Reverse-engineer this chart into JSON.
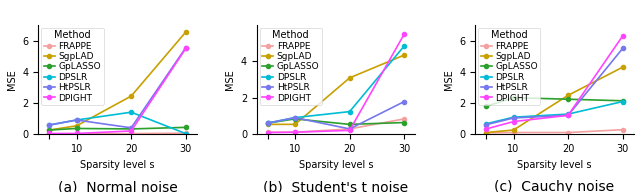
{
  "x": [
    5,
    10,
    20,
    30
  ],
  "methods": [
    "FRAPPE",
    "SgpLAD",
    "GpLASSO",
    "DPSLR",
    "HtPSLR",
    "DPIGHT"
  ],
  "colors": [
    "#f4a0a0",
    "#c8a000",
    "#2ca02c",
    "#00bcd4",
    "#7777ee",
    "#ff44ff"
  ],
  "markers": [
    "o",
    "o",
    "o",
    "o",
    "o",
    "o"
  ],
  "panels": [
    {
      "caption": "(a)  Normal noise",
      "ylabel": "MSE",
      "xlabel": "Sparsity level s",
      "data": [
        [
          0.03,
          0.03,
          0.05,
          0.08
        ],
        [
          0.28,
          0.55,
          2.45,
          6.55
        ],
        [
          0.28,
          0.38,
          0.35,
          0.45
        ],
        [
          0.6,
          0.92,
          1.42,
          0.05
        ],
        [
          0.6,
          0.92,
          0.42,
          5.55
        ],
        [
          0.06,
          0.06,
          0.22,
          5.5
        ]
      ],
      "ylim": [
        0,
        7.0
      ],
      "yticks": [
        0,
        2,
        4,
        6
      ]
    },
    {
      "caption": "(b)  Student's t noise",
      "ylabel": "MSE",
      "xlabel": "Sparsity level s",
      "data": [
        [
          0.12,
          0.12,
          0.3,
          0.85
        ],
        [
          0.55,
          0.55,
          3.1,
          4.35
        ],
        [
          0.62,
          0.85,
          0.55,
          0.65
        ],
        [
          0.62,
          0.92,
          1.25,
          4.85
        ],
        [
          0.62,
          0.92,
          0.3,
          1.8
        ],
        [
          0.1,
          0.12,
          0.22,
          5.5
        ]
      ],
      "ylim": [
        0,
        6.0
      ],
      "yticks": [
        0,
        2,
        4
      ]
    },
    {
      "caption": "(c)  Cauchy noise",
      "ylabel": "MSE",
      "xlabel": "Sparsity level s",
      "data": [
        [
          0.1,
          0.12,
          0.12,
          0.3
        ],
        [
          0.12,
          0.28,
          2.5,
          4.3
        ],
        [
          1.8,
          2.35,
          2.25,
          2.15
        ],
        [
          0.68,
          1.1,
          1.3,
          2.1
        ],
        [
          0.62,
          1.05,
          1.22,
          5.5
        ],
        [
          0.35,
          0.82,
          1.22,
          6.3
        ]
      ],
      "ylim": [
        0,
        7.0
      ],
      "yticks": [
        0,
        2,
        4,
        6
      ]
    }
  ],
  "legend_title": "Method",
  "xtick_labels": [
    "",
    "10",
    "20",
    "30"
  ],
  "linewidth": 1.2,
  "markersize": 3,
  "background_color": "#ffffff",
  "caption_fontsize": 10,
  "axis_label_fontsize": 7,
  "tick_fontsize": 7,
  "legend_fontsize": 6.5
}
